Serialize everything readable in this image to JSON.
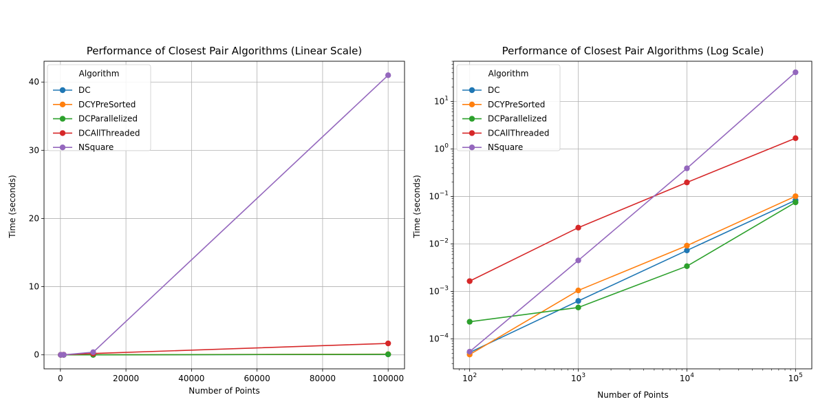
{
  "chart_data": [
    {
      "type": "line",
      "title": "Performance of Closest Pair Algorithms (Linear Scale)",
      "xlabel": "Number of Points",
      "ylabel": "Time (seconds)",
      "xscale": "linear",
      "yscale": "linear",
      "xlim": [
        -5000,
        105000
      ],
      "ylim": [
        -2.05,
        43.05
      ],
      "xticks": [
        0,
        20000,
        40000,
        60000,
        80000,
        100000
      ],
      "xtick_labels": [
        "0",
        "20000",
        "40000",
        "60000",
        "80000",
        "100000"
      ],
      "yticks": [
        0,
        10,
        20,
        30,
        40
      ],
      "ytick_labels": [
        "0",
        "10",
        "20",
        "30",
        "40"
      ],
      "grid": true,
      "legend": {
        "title": "Algorithm",
        "placement": "upper-left"
      },
      "x": [
        100,
        1000,
        10000,
        100000
      ],
      "series": [
        {
          "name": "DC",
          "color": "#1f77b4",
          "values": [
            5.2e-05,
            0.00063,
            0.0073,
            0.083
          ]
        },
        {
          "name": "DCYPreSorted",
          "color": "#ff7f0e",
          "values": [
            4.7e-05,
            0.00105,
            0.0092,
            0.101
          ]
        },
        {
          "name": "DCParallelized",
          "color": "#2ca02c",
          "values": [
            0.00023,
            0.00046,
            0.0034,
            0.075
          ]
        },
        {
          "name": "DCAllThreaded",
          "color": "#d62728",
          "values": [
            0.00165,
            0.022,
            0.197,
            1.68
          ]
        },
        {
          "name": "NSquare",
          "color": "#9467bd",
          "values": [
            5.4e-05,
            0.0045,
            0.39,
            41.0
          ]
        }
      ]
    },
    {
      "type": "line",
      "title": "Performance of Closest Pair Algorithms (Log Scale)",
      "xlabel": "Number of Points",
      "ylabel": "Time (seconds)",
      "xscale": "log",
      "yscale": "log",
      "xlim": [
        70.8,
        141250
      ],
      "ylim": [
        2.35e-05,
        70
      ],
      "xticks": [
        100,
        1000,
        10000,
        100000
      ],
      "xtick_labels": [
        [
          "10",
          "2"
        ],
        [
          "10",
          "3"
        ],
        [
          "10",
          "4"
        ],
        [
          "10",
          "5"
        ]
      ],
      "yticks": [
        0.0001,
        0.001,
        0.01,
        0.1,
        1,
        10
      ],
      "ytick_labels": [
        [
          "10",
          "−4"
        ],
        [
          "10",
          "−3"
        ],
        [
          "10",
          "−2"
        ],
        [
          "10",
          "−1"
        ],
        [
          "10",
          "0"
        ],
        [
          "10",
          "1"
        ]
      ],
      "grid": true,
      "legend": {
        "title": "Algorithm",
        "placement": "upper-left"
      },
      "x": [
        100,
        1000,
        10000,
        100000
      ],
      "series": [
        {
          "name": "DC",
          "color": "#1f77b4",
          "values": [
            5.2e-05,
            0.00063,
            0.0073,
            0.083
          ]
        },
        {
          "name": "DCYPreSorted",
          "color": "#ff7f0e",
          "values": [
            4.7e-05,
            0.00105,
            0.0092,
            0.101
          ]
        },
        {
          "name": "DCParallelized",
          "color": "#2ca02c",
          "values": [
            0.00023,
            0.00046,
            0.0034,
            0.075
          ]
        },
        {
          "name": "DCAllThreaded",
          "color": "#d62728",
          "values": [
            0.00165,
            0.022,
            0.197,
            1.68
          ]
        },
        {
          "name": "NSquare",
          "color": "#9467bd",
          "values": [
            5.4e-05,
            0.0045,
            0.39,
            41.0
          ]
        }
      ]
    }
  ]
}
